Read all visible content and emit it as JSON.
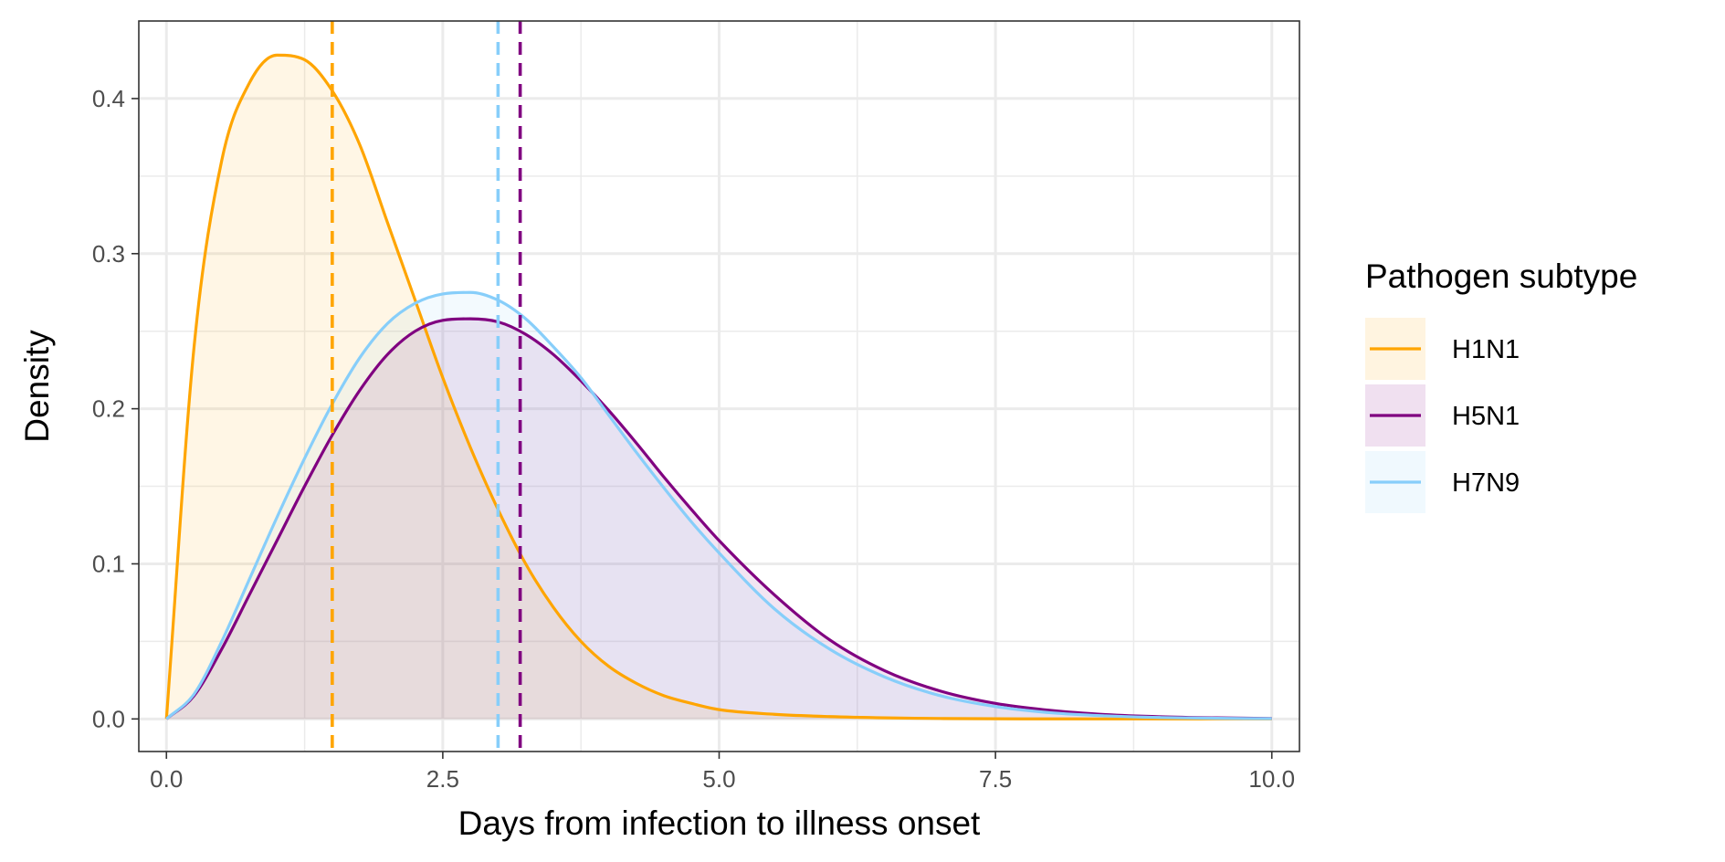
{
  "chart_data": {
    "type": "area",
    "xlabel": "Days from infection to illness onset",
    "ylabel": "Density",
    "xlim": [
      -0.25,
      10.25
    ],
    "ylim": [
      -0.021,
      0.45
    ],
    "x_ticks": [
      0.0,
      2.5,
      5.0,
      7.5,
      10.0
    ],
    "x_tick_labels": [
      "0.0",
      "2.5",
      "5.0",
      "7.5",
      "10.0"
    ],
    "y_ticks": [
      0.0,
      0.1,
      0.2,
      0.3,
      0.4
    ],
    "y_tick_labels": [
      "0.0",
      "0.1",
      "0.2",
      "0.3",
      "0.4"
    ],
    "grid": true,
    "legend": {
      "title": "Pathogen subtype",
      "placement": "right"
    },
    "x": [
      0,
      0.25,
      0.5,
      0.75,
      1,
      1.25,
      1.5,
      1.75,
      2,
      2.25,
      2.5,
      2.75,
      3,
      3.25,
      3.5,
      3.75,
      4,
      4.25,
      4.5,
      4.75,
      5,
      5.5,
      6,
      6.5,
      7,
      7.5,
      8,
      8.5,
      9,
      9.5,
      10
    ],
    "series": [
      {
        "name": "H1N1",
        "color": "#FFA500",
        "values": [
          0,
          0.24,
          0.36,
          0.41,
          0.428,
          0.425,
          0.405,
          0.37,
          0.32,
          0.27,
          0.22,
          0.175,
          0.135,
          0.1,
          0.072,
          0.05,
          0.034,
          0.023,
          0.015,
          0.01,
          0.006,
          0.003,
          0.0015,
          0.0007,
          0.0003,
          0.0001,
          5e-05,
          2e-05,
          1e-05,
          0,
          0
        ],
        "mean": 1.5
      },
      {
        "name": "H5N1",
        "color": "#800080",
        "values": [
          0,
          0.015,
          0.045,
          0.08,
          0.115,
          0.15,
          0.183,
          0.212,
          0.235,
          0.25,
          0.257,
          0.258,
          0.256,
          0.248,
          0.235,
          0.218,
          0.199,
          0.178,
          0.156,
          0.135,
          0.115,
          0.08,
          0.051,
          0.031,
          0.018,
          0.01,
          0.0055,
          0.0028,
          0.0014,
          0.0007,
          0.0003
        ],
        "mean": 3.2
      },
      {
        "name": "H7N9",
        "color": "#87CEFA",
        "values": [
          0,
          0.016,
          0.05,
          0.09,
          0.13,
          0.168,
          0.203,
          0.233,
          0.255,
          0.268,
          0.274,
          0.275,
          0.27,
          0.258,
          0.24,
          0.22,
          0.196,
          0.172,
          0.149,
          0.127,
          0.107,
          0.071,
          0.045,
          0.027,
          0.015,
          0.008,
          0.004,
          0.002,
          0.0009,
          0.0004,
          0.0002
        ],
        "mean": 3.0
      }
    ]
  }
}
